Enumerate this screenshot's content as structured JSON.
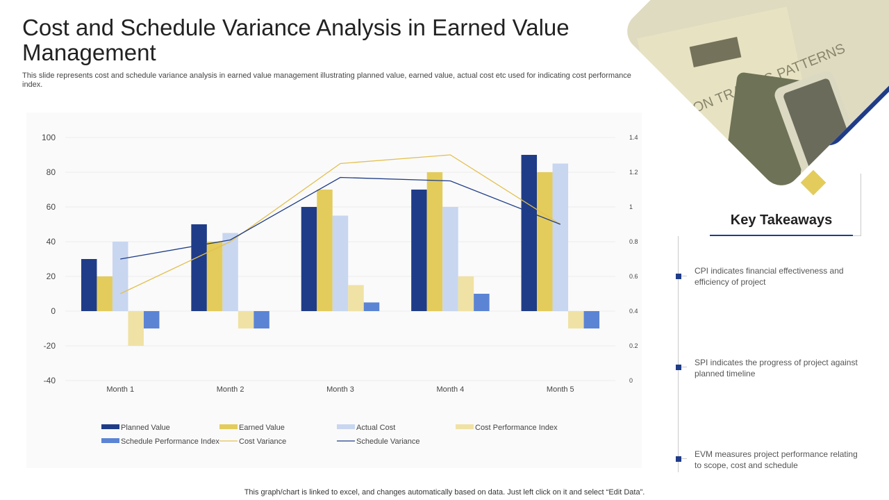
{
  "header": {
    "title": "Cost and Schedule Variance Analysis in Earned Value Management",
    "subtitle": "This slide represents cost and schedule variance analysis in  earned value management illustrating planned value, earned value, actual cost etc used for  indicating cost performance index."
  },
  "chart_data": {
    "type": "bar",
    "title": "",
    "xlabel": "",
    "ylabel": "",
    "categories": [
      "Month 1",
      "Month 2",
      "Month 3",
      "Month 4",
      "Month 5"
    ],
    "ylim": [
      -40,
      100
    ],
    "y_ticks": [
      "100",
      "80",
      "60",
      "40",
      "20",
      "0",
      "-20",
      "-40"
    ],
    "y2lim": [
      0,
      1.4
    ],
    "y2_ticks": [
      "1.4",
      "1.2",
      "1",
      "0.8",
      "0.6",
      "0.4",
      "0.2",
      "0"
    ],
    "grid": true,
    "legend_position": "bottom",
    "series": [
      {
        "name": "Planned Value",
        "kind": "bar",
        "axis": "left",
        "color": "#1f3c88",
        "values": [
          30,
          50,
          60,
          70,
          90
        ]
      },
      {
        "name": "Earned Value",
        "kind": "bar",
        "axis": "left",
        "color": "#e3cc5c",
        "values": [
          20,
          40,
          70,
          80,
          80
        ]
      },
      {
        "name": "Actual Cost",
        "kind": "bar",
        "axis": "left",
        "color": "#c8d6f0",
        "values": [
          40,
          45,
          55,
          60,
          85
        ]
      },
      {
        "name": "Cost Performance Index",
        "kind": "bar",
        "axis": "left",
        "color": "#f0e2a4",
        "values": [
          -20,
          -10,
          15,
          20,
          -10
        ]
      },
      {
        "name": "Schedule Performance Index",
        "kind": "bar",
        "axis": "left",
        "color": "#5b84d4",
        "values": [
          -10,
          -10,
          5,
          10,
          -10
        ]
      },
      {
        "name": "Cost Variance",
        "kind": "line",
        "axis": "right",
        "color": "#e3c04f",
        "values": [
          0.5,
          0.8,
          1.25,
          1.3,
          0.9
        ]
      },
      {
        "name": "Schedule Variance",
        "kind": "line",
        "axis": "right",
        "color": "#1f3c88",
        "values": [
          0.7,
          0.81,
          1.17,
          1.15,
          0.9
        ]
      }
    ]
  },
  "key_takeaways": {
    "title": "Key Takeaways",
    "items": [
      "CPI indicates financial effectiveness and efficiency of project",
      "SPI indicates the progress of project against planned timeline",
      "EVM measures project performance relating to scope, cost and schedule"
    ]
  },
  "footer": {
    "note": "This graph/chart is linked to excel, and changes automatically based on data. Just left click on it and select “Edit Data”."
  },
  "colors": {
    "accent": "#1f3c88",
    "gold": "#e3cc5c"
  },
  "photo": {
    "icon": "trading-photo-icon"
  }
}
